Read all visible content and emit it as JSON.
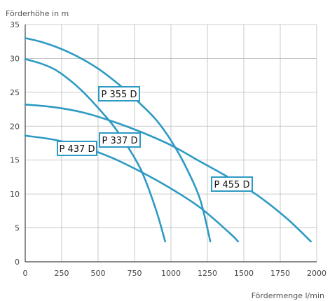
{
  "chart_data": {
    "type": "line",
    "ylabel": "Förderhöhe in m",
    "xlabel": "Fördermenge l/min",
    "xlim": [
      0,
      2000
    ],
    "ylim": [
      0,
      35
    ],
    "x_ticks": [
      "0",
      "250",
      "500",
      "750",
      "1000",
      "1250",
      "1500",
      "1750",
      "2000"
    ],
    "y_ticks": [
      "0",
      "5",
      "10",
      "15",
      "20",
      "25",
      "30",
      "35"
    ],
    "grid": true,
    "colors": {
      "curve": "#2e9ac4",
      "grid": "#bbbbbb",
      "axis": "#444444",
      "label_border": "#2e9ac4"
    },
    "series": [
      {
        "name": "P 355 D",
        "x": [
          0,
          100,
          200,
          300,
          400,
          500,
          600,
          700,
          800,
          900,
          1000,
          1100,
          1200,
          1270
        ],
        "y": [
          33,
          32.5,
          31.8,
          30.9,
          29.8,
          28.5,
          26.9,
          25.1,
          23.1,
          20.9,
          17.9,
          14.1,
          9.2,
          3
        ]
      },
      {
        "name": "P 337 D",
        "x": [
          0,
          100,
          200,
          300,
          400,
          500,
          600,
          700,
          800,
          900,
          960
        ],
        "y": [
          29.9,
          29.3,
          28.4,
          26.9,
          25.0,
          22.7,
          20.2,
          17.1,
          13.3,
          7.5,
          3
        ]
      },
      {
        "name": "P 455 D",
        "x": [
          0,
          200,
          400,
          600,
          800,
          1000,
          1200,
          1400,
          1600,
          1800,
          1960
        ],
        "y": [
          23.2,
          22.8,
          22.0,
          20.7,
          19.1,
          17.2,
          14.8,
          12.4,
          9.7,
          6.3,
          3
        ]
      },
      {
        "name": "P 437 D",
        "x": [
          0,
          200,
          400,
          600,
          800,
          1000,
          1200,
          1400,
          1460
        ],
        "y": [
          18.6,
          18.0,
          16.9,
          15.3,
          13.2,
          10.8,
          8.0,
          4.3,
          3
        ]
      }
    ]
  }
}
